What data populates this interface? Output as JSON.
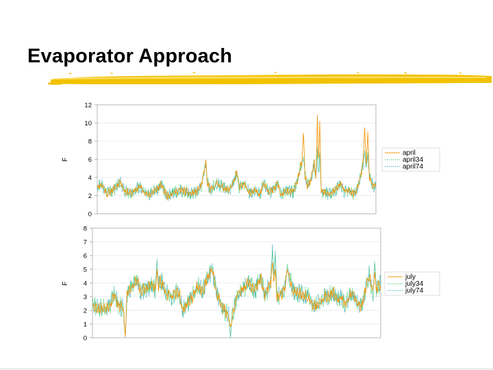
{
  "slide": {
    "title": "Evaporator Approach"
  },
  "colors": {
    "accent_yellow": "#f2c200",
    "series_base": "#f29a12",
    "series_34": "#3cc86a",
    "series_74": "#2aa3b8",
    "grid": "#d9d9d9",
    "plot_border": "#a6a6a6"
  },
  "chart_data": [
    {
      "type": "line",
      "title": "",
      "xlabel": "",
      "ylabel": "F",
      "ylim": [
        0,
        12
      ],
      "yticks": [
        0,
        2,
        4,
        6,
        8,
        10,
        12
      ],
      "grid": true,
      "legend": "right",
      "n_points": 720,
      "series": [
        {
          "name": "april",
          "style": "solid",
          "color": "#f29a12"
        },
        {
          "name": "april34",
          "style": "dotted",
          "color": "#3cc86a"
        },
        {
          "name": "april74",
          "style": "dotted",
          "color": "#2aa3b8"
        }
      ],
      "profile": [
        [
          0,
          3.0
        ],
        [
          12,
          3.2
        ],
        [
          25,
          2.2
        ],
        [
          45,
          2.8
        ],
        [
          60,
          3.6
        ],
        [
          70,
          2.5
        ],
        [
          90,
          2.3
        ],
        [
          110,
          3.0
        ],
        [
          130,
          2.0
        ],
        [
          150,
          2.6
        ],
        [
          165,
          3.2
        ],
        [
          180,
          2.0
        ],
        [
          200,
          2.4
        ],
        [
          220,
          2.6
        ],
        [
          240,
          2.2
        ],
        [
          255,
          2.4
        ],
        [
          268,
          3.0
        ],
        [
          276,
          4.6
        ],
        [
          280,
          5.8
        ],
        [
          284,
          3.4
        ],
        [
          292,
          2.6
        ],
        [
          310,
          3.4
        ],
        [
          320,
          3.0
        ],
        [
          340,
          2.6
        ],
        [
          355,
          3.8
        ],
        [
          360,
          4.6
        ],
        [
          366,
          3.0
        ],
        [
          380,
          3.2
        ],
        [
          395,
          2.2
        ],
        [
          410,
          2.6
        ],
        [
          420,
          2.2
        ],
        [
          430,
          3.4
        ],
        [
          445,
          2.4
        ],
        [
          455,
          2.6
        ],
        [
          465,
          3.4
        ],
        [
          475,
          2.0
        ],
        [
          490,
          2.6
        ],
        [
          505,
          2.4
        ],
        [
          515,
          3.4
        ],
        [
          525,
          5.2
        ],
        [
          532,
          6.0
        ],
        [
          535,
          4.4
        ],
        [
          542,
          3.0
        ],
        [
          548,
          3.4
        ],
        [
          556,
          4.6
        ],
        [
          560,
          5.6
        ],
        [
          567,
          2.8
        ],
        [
          580,
          2.4
        ],
        [
          600,
          2.2
        ],
        [
          615,
          2.6
        ],
        [
          628,
          3.4
        ],
        [
          638,
          2.4
        ],
        [
          650,
          2.6
        ],
        [
          662,
          2.2
        ],
        [
          672,
          2.8
        ],
        [
          680,
          4.2
        ],
        [
          688,
          6.0
        ],
        [
          695,
          5.0
        ],
        [
          705,
          3.8
        ],
        [
          712,
          3.0
        ],
        [
          719,
          3.2
        ]
      ],
      "spikes": [
        {
          "x": 532,
          "april": 8.9,
          "april34": 6.3,
          "april74": 6.0
        },
        {
          "x": 568,
          "april": 10.9,
          "april34": 7.3,
          "april74": 6.9
        },
        {
          "x": 574,
          "april": 10.2,
          "april34": 6.8,
          "april74": 6.5
        },
        {
          "x": 690,
          "april": 9.5,
          "april34": 7.0,
          "april74": 6.6
        },
        {
          "x": 698,
          "april": 9.0,
          "april34": 6.8,
          "april74": 6.4
        }
      ]
    },
    {
      "type": "line",
      "title": "",
      "xlabel": "",
      "ylabel": "F",
      "ylim": [
        0,
        8
      ],
      "yticks": [
        0,
        1,
        2,
        3,
        4,
        5,
        6,
        7,
        8
      ],
      "grid": true,
      "legend": "right",
      "n_points": 720,
      "series": [
        {
          "name": "july",
          "style": "solid",
          "color": "#f29a12"
        },
        {
          "name": "july34",
          "style": "dotted",
          "color": "#3cc86a"
        },
        {
          "name": "july74",
          "style": "dotted",
          "color": "#2aa3b8"
        }
      ],
      "profile": [
        [
          0,
          2.4
        ],
        [
          15,
          2.1
        ],
        [
          35,
          2.2
        ],
        [
          45,
          2.5
        ],
        [
          55,
          3.2
        ],
        [
          65,
          2.3
        ],
        [
          75,
          2.2
        ],
        [
          80,
          1.6
        ],
        [
          85,
          3.2
        ],
        [
          100,
          3.8
        ],
        [
          112,
          4.2
        ],
        [
          120,
          3.4
        ],
        [
          135,
          3.6
        ],
        [
          150,
          3.9
        ],
        [
          160,
          3.2
        ],
        [
          170,
          4.2
        ],
        [
          185,
          3.2
        ],
        [
          200,
          3.0
        ],
        [
          215,
          3.4
        ],
        [
          225,
          2.0
        ],
        [
          240,
          2.6
        ],
        [
          255,
          3.2
        ],
        [
          262,
          3.8
        ],
        [
          275,
          3.4
        ],
        [
          285,
          4.2
        ],
        [
          295,
          4.8
        ],
        [
          302,
          4.5
        ],
        [
          310,
          3.2
        ],
        [
          320,
          2.6
        ],
        [
          330,
          2.0
        ],
        [
          340,
          1.6
        ],
        [
          345,
          1.2
        ],
        [
          352,
          1.8
        ],
        [
          360,
          3.0
        ],
        [
          375,
          3.6
        ],
        [
          390,
          4.0
        ],
        [
          405,
          3.4
        ],
        [
          420,
          4.4
        ],
        [
          430,
          3.0
        ],
        [
          440,
          3.8
        ],
        [
          450,
          4.4
        ],
        [
          460,
          3.0
        ],
        [
          472,
          3.2
        ],
        [
          480,
          3.6
        ],
        [
          487,
          4.6
        ],
        [
          494,
          4.2
        ],
        [
          500,
          3.4
        ],
        [
          520,
          3.2
        ],
        [
          540,
          3.0
        ],
        [
          550,
          2.4
        ],
        [
          560,
          2.4
        ],
        [
          570,
          2.6
        ],
        [
          580,
          3.0
        ],
        [
          590,
          3.0
        ],
        [
          600,
          3.4
        ],
        [
          610,
          2.8
        ],
        [
          620,
          3.0
        ],
        [
          630,
          2.4
        ],
        [
          640,
          3.0
        ],
        [
          650,
          3.2
        ],
        [
          660,
          2.6
        ],
        [
          670,
          2.2
        ],
        [
          680,
          3.4
        ],
        [
          690,
          4.6
        ],
        [
          700,
          3.2
        ],
        [
          710,
          3.6
        ],
        [
          719,
          4.0
        ]
      ],
      "spikes": [
        {
          "x": 82,
          "july": 0.1,
          "july34": 0.0,
          "july74": 0.0
        },
        {
          "x": 161,
          "july": 5.0,
          "july34": 5.6,
          "july74": 5.8
        },
        {
          "x": 298,
          "july": 5.0,
          "july34": 5.2,
          "july74": 5.4
        },
        {
          "x": 344,
          "july": 0.8,
          "july34": 0.2,
          "july74": 0.0
        },
        {
          "x": 449,
          "july": 5.5,
          "july34": 6.4,
          "july74": 6.8
        },
        {
          "x": 456,
          "july": 5.0,
          "july34": 6.0,
          "july74": 6.4
        },
        {
          "x": 486,
          "july": 5.0,
          "july34": 5.4,
          "july74": 5.2
        },
        {
          "x": 704,
          "july": 4.8,
          "july34": 5.4,
          "july74": 5.6
        }
      ]
    }
  ]
}
